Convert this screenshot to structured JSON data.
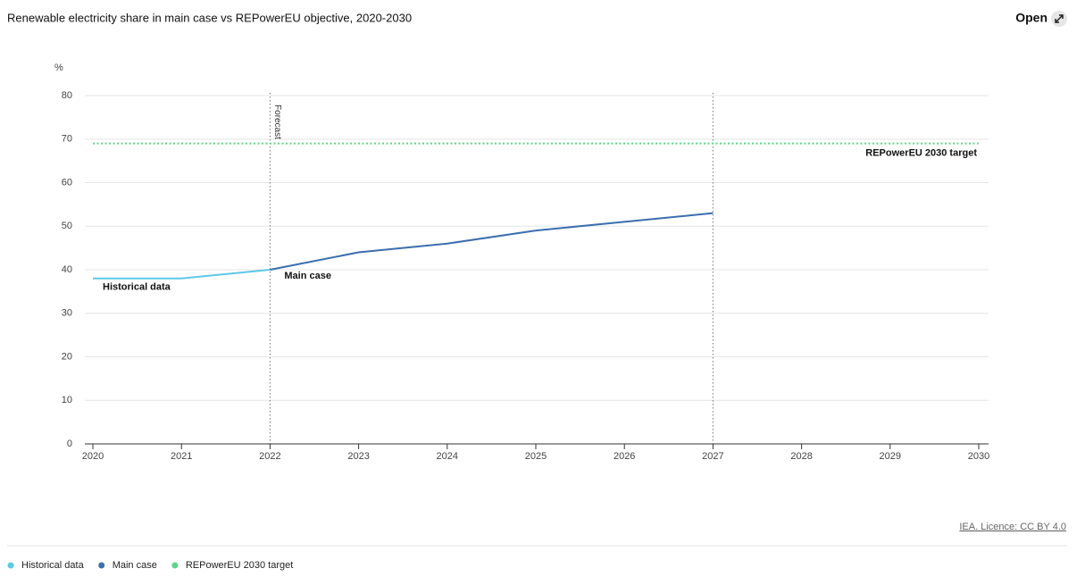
{
  "chart_data": {
    "type": "line",
    "title": "Renewable electricity share in main case vs REPowerEU objective, 2020-2030",
    "y_label": "%",
    "x": [
      2020,
      2021,
      2022,
      2023,
      2024,
      2025,
      2026,
      2027,
      2028,
      2029,
      2030
    ],
    "series": [
      {
        "name": "Historical data",
        "color": "#5cc8e6",
        "dash": false,
        "values": [
          38,
          38,
          40,
          null,
          null,
          null,
          null,
          null,
          null,
          null,
          null
        ]
      },
      {
        "name": "Main case",
        "color": "#3c6eae",
        "dash": false,
        "values": [
          null,
          null,
          40,
          44,
          46,
          49,
          51,
          53,
          null,
          null,
          null
        ]
      },
      {
        "name": "REPowerEU 2030 target",
        "color": "#5ed68a",
        "dash": true,
        "values": [
          69,
          69,
          69,
          69,
          69,
          69,
          69,
          69,
          69,
          69,
          69
        ]
      }
    ],
    "vlines": [
      {
        "value": 2022,
        "label": "Forecast"
      },
      {
        "value": 2027
      }
    ],
    "xlim": [
      2020,
      2030
    ],
    "xticks": [
      2020,
      2021,
      2022,
      2023,
      2024,
      2025,
      2026,
      2027,
      2028,
      2029,
      2030
    ],
    "ylim": [
      0,
      80
    ],
    "yticks": [
      0,
      10,
      20,
      30,
      40,
      50,
      60,
      70,
      80
    ],
    "grid": true
  },
  "open_button": "Open",
  "source": "IEA. Licence: CC BY 4.0"
}
